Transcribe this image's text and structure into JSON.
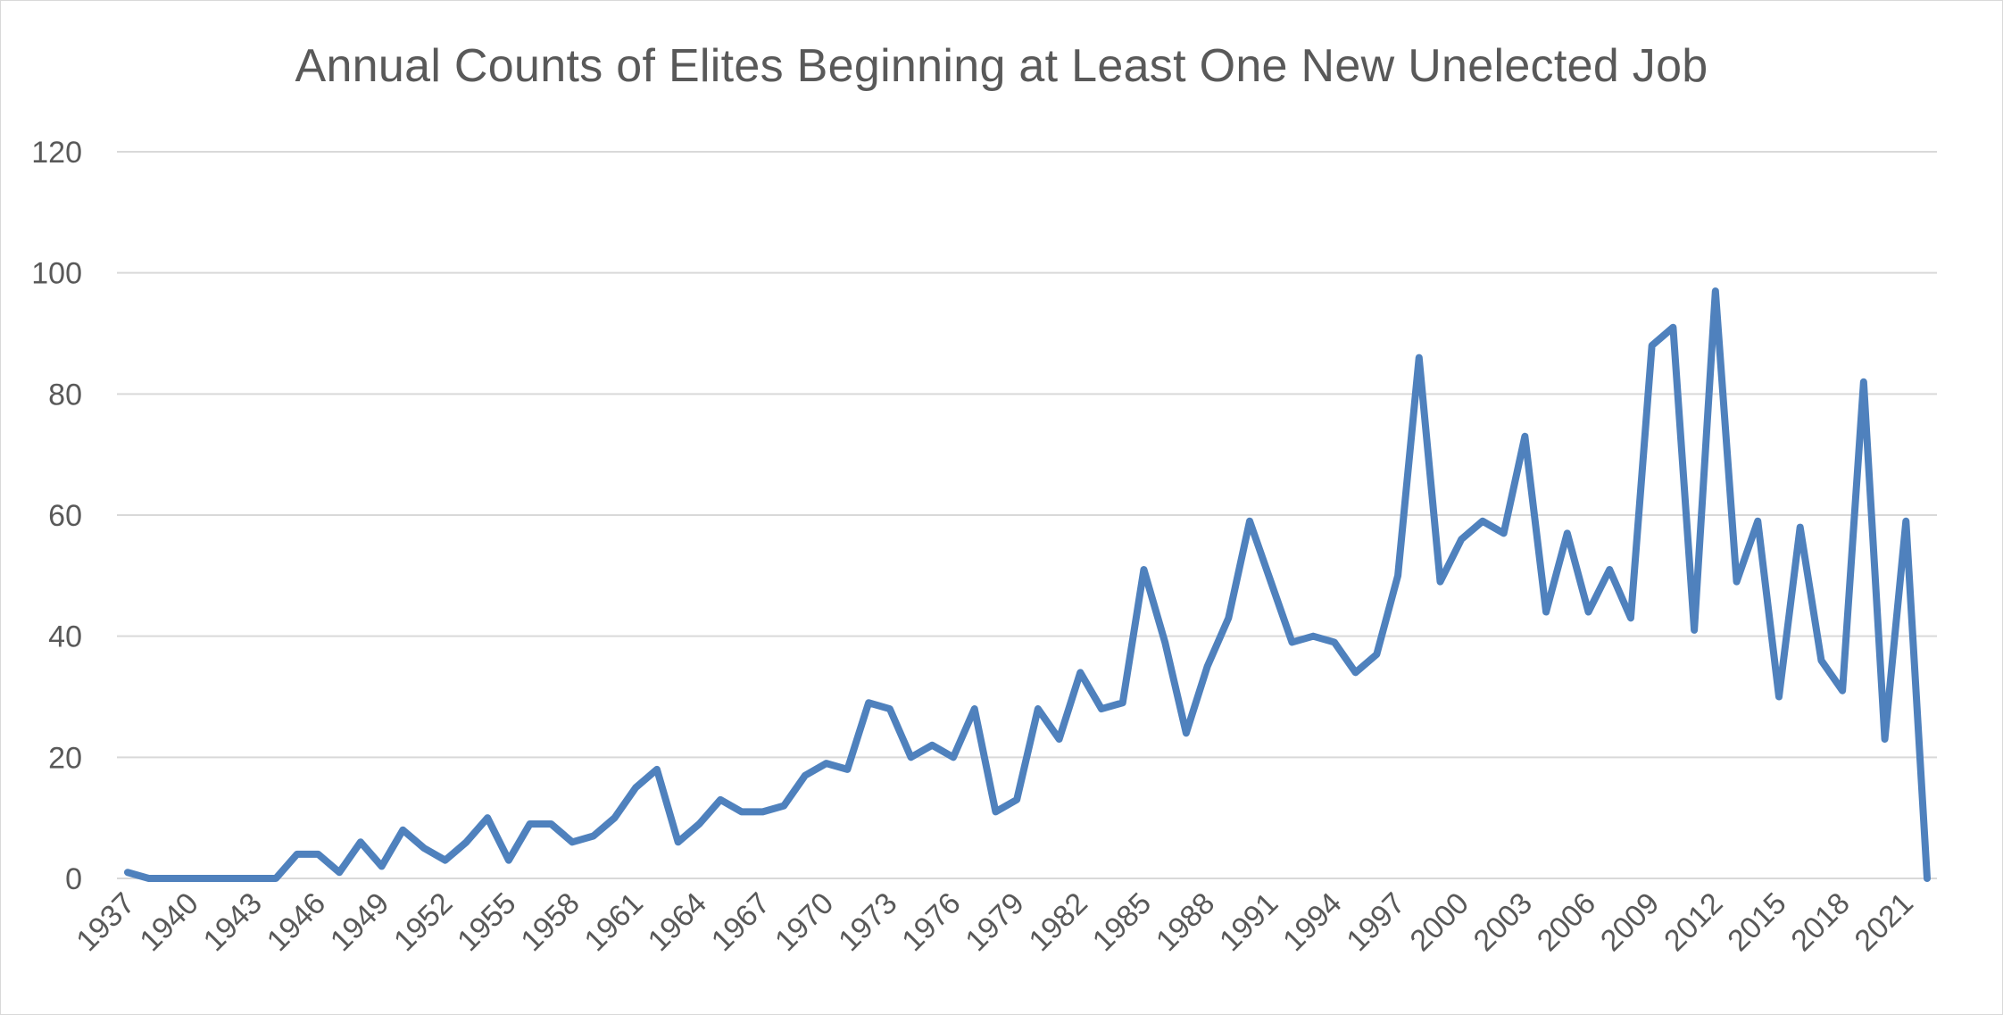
{
  "chart_data": {
    "type": "line",
    "title": "Annual Counts of Elites Beginning at Least One New Unelected Job",
    "xlabel": "",
    "ylabel": "",
    "ylim": [
      0,
      120
    ],
    "yticks": [
      0,
      20,
      40,
      60,
      80,
      100,
      120
    ],
    "xtick_labels": [
      "1937",
      "1940",
      "1943",
      "1946",
      "1949",
      "1952",
      "1955",
      "1958",
      "1961",
      "1964",
      "1967",
      "1970",
      "1973",
      "1976",
      "1979",
      "1982",
      "1985",
      "1988",
      "1991",
      "1994",
      "1997",
      "2000",
      "2003",
      "2006",
      "2009",
      "2012",
      "2015",
      "2018",
      "2021"
    ],
    "grid": true,
    "legend": "none",
    "x": [
      1937,
      1938,
      1939,
      1940,
      1941,
      1942,
      1943,
      1944,
      1945,
      1946,
      1947,
      1948,
      1949,
      1950,
      1951,
      1952,
      1953,
      1954,
      1955,
      1956,
      1957,
      1958,
      1959,
      1960,
      1961,
      1962,
      1963,
      1964,
      1965,
      1966,
      1967,
      1968,
      1969,
      1970,
      1971,
      1972,
      1973,
      1974,
      1975,
      1976,
      1977,
      1978,
      1979,
      1980,
      1981,
      1982,
      1983,
      1984,
      1985,
      1986,
      1987,
      1988,
      1989,
      1990,
      1991,
      1992,
      1993,
      1994,
      1995,
      1996,
      1997,
      1998,
      1999,
      2000,
      2001,
      2002,
      2003,
      2004,
      2005,
      2006,
      2007,
      2008,
      2009,
      2010,
      2011,
      2012,
      2013,
      2014,
      2015,
      2016,
      2017,
      2018,
      2019,
      2020,
      2021,
      2022
    ],
    "series": [
      {
        "color": "#4f81bd",
        "values": [
          1,
          0,
          0,
          0,
          0,
          0,
          0,
          0,
          4,
          4,
          1,
          6,
          2,
          8,
          5,
          3,
          6,
          10,
          3,
          9,
          9,
          6,
          7,
          10,
          15,
          18,
          6,
          9,
          13,
          11,
          11,
          12,
          17,
          19,
          18,
          29,
          28,
          20,
          22,
          20,
          28,
          11,
          13,
          28,
          23,
          34,
          28,
          29,
          51,
          39,
          24,
          35,
          43,
          59,
          49,
          39,
          40,
          39,
          34,
          37,
          50,
          86,
          49,
          56,
          59,
          57,
          73,
          44,
          57,
          44,
          51,
          43,
          88,
          91,
          41,
          97,
          49,
          59,
          30,
          58,
          36,
          31,
          82,
          23,
          59,
          0
        ]
      }
    ]
  }
}
